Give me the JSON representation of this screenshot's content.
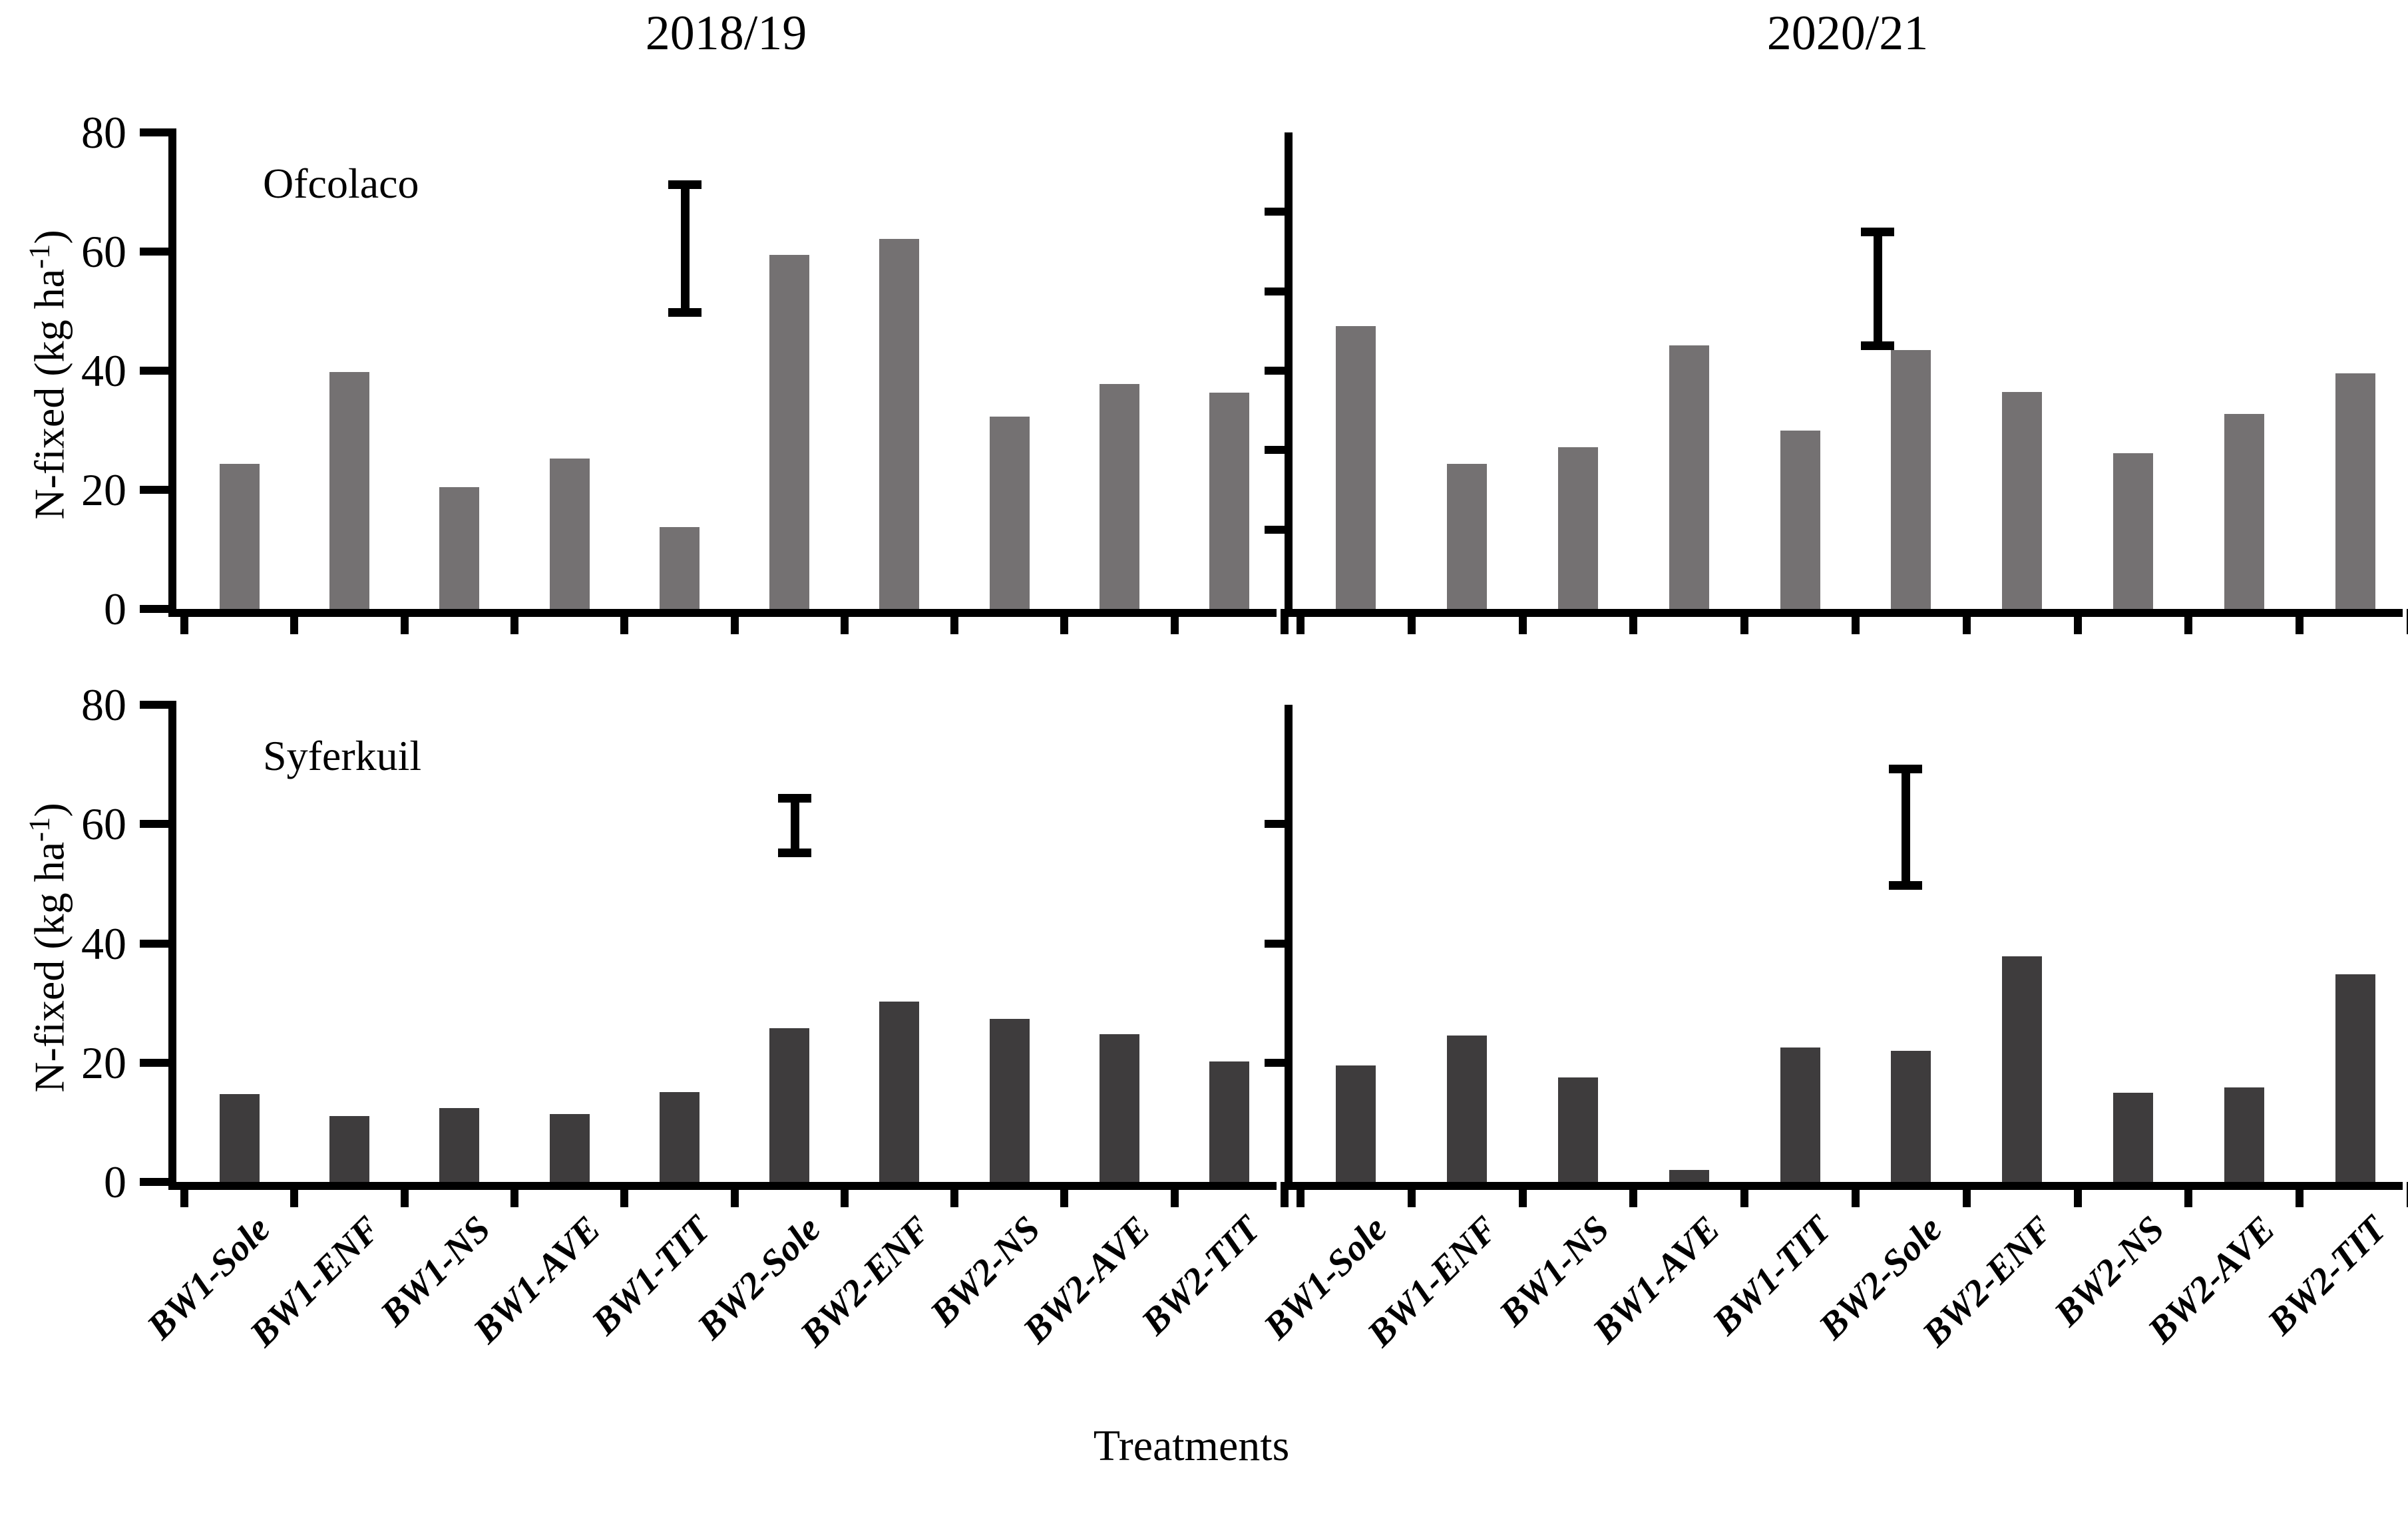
{
  "figure": {
    "column_titles": {
      "left": "2018/19",
      "right": "2020/21"
    },
    "xlabel": "Treatments",
    "ylabel": {
      "prefix": "N-fixed (kg ha",
      "sup": "-1",
      "suffix": ")"
    }
  },
  "colors": {
    "top_row_bars": "#747172",
    "bottom_row_bars": "#3E3C3D",
    "axis": "#000000",
    "background": "#FFFFFF"
  },
  "chart_data": {
    "type": "bar",
    "categories": [
      "BW1-Sole",
      "BW1-ENF",
      "BW1-NS",
      "BW1-AVE",
      "BW1-TIT",
      "BW2-Sole",
      "BW2-ENF",
      "BW2-NS",
      "BW2-AVE",
      "BW2-TIT"
    ],
    "ylim": [
      0,
      80
    ],
    "grid": false,
    "legend": "none",
    "xlabel": "Treatments",
    "ylabel": "N-fixed (kg ha-1)",
    "panels": [
      {
        "location": "Ofcolaco",
        "season": "2018/19",
        "row": 0,
        "col": 0,
        "show_location_label": true,
        "yticks_labeled": [
          0,
          20,
          40,
          60,
          80
        ],
        "values": [
          24.4,
          39.8,
          20.5,
          25.2,
          13.7,
          59.4,
          62.1,
          32.3,
          37.8,
          36.3
        ],
        "error_bar": {
          "above": "BW1-TIT",
          "x_fraction": 0.455,
          "low": 49,
          "high": 72
        }
      },
      {
        "location": "Ofcolaco",
        "season": "2020/21",
        "row": 0,
        "col": 1,
        "show_location_label": false,
        "yticks_unlabeled": [
          13.3,
          26.7,
          40,
          53.3,
          66.7
        ],
        "values": [
          47.5,
          24.4,
          27.2,
          44.3,
          30.0,
          43.5,
          36.4,
          26.2,
          32.7,
          39.6
        ],
        "error_bar": {
          "above": "BW1-TIT",
          "x_fraction": 0.52,
          "low": 43.5,
          "high": 64
        }
      },
      {
        "location": "Syferkuil",
        "season": "2018/19",
        "row": 1,
        "col": 0,
        "show_location_label": true,
        "yticks_labeled": [
          0,
          20,
          40,
          60,
          80
        ],
        "values": [
          14.7,
          11.0,
          12.4,
          11.4,
          15.1,
          25.8,
          30.2,
          27.3,
          24.8,
          20.2
        ],
        "error_bar": {
          "above": "BW2-Sole",
          "x_fraction": 0.555,
          "low": 54.5,
          "high": 65
        }
      },
      {
        "location": "Syferkuil",
        "season": "2020/21",
        "row": 1,
        "col": 1,
        "show_location_label": false,
        "yticks_unlabeled": [
          20,
          40,
          60
        ],
        "values": [
          19.5,
          24.5,
          17.5,
          2.0,
          22.5,
          22.0,
          37.8,
          14.9,
          15.8,
          34.8
        ],
        "error_bar": {
          "above": "BW2-Sole",
          "x_fraction": 0.545,
          "low": 49,
          "high": 70
        }
      }
    ]
  }
}
